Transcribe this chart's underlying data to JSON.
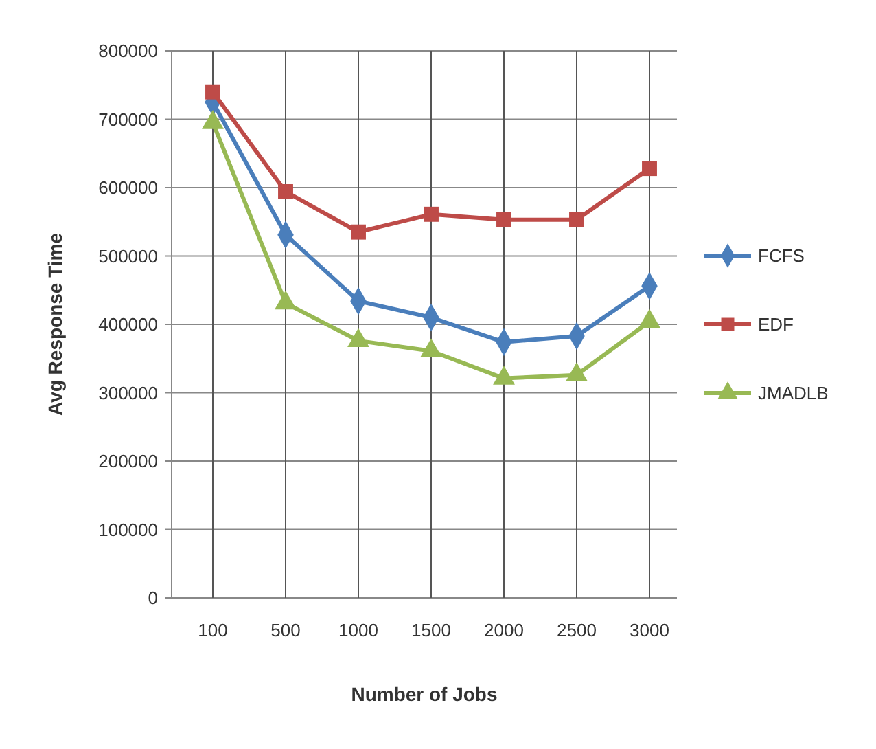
{
  "chart_data": {
    "type": "line",
    "xlabel": "Number of Jobs",
    "ylabel": "Avg Response Time",
    "categories": [
      "100",
      "500",
      "1000",
      "1500",
      "2000",
      "2500",
      "3000"
    ],
    "series": [
      {
        "name": "FCFS",
        "color": "#4a7ebb",
        "marker": "diamond",
        "values": [
          725000,
          531000,
          434000,
          410000,
          374000,
          383000,
          456000
        ]
      },
      {
        "name": "EDF",
        "color": "#be4b48",
        "marker": "square",
        "values": [
          740000,
          594000,
          535000,
          561000,
          553000,
          553000,
          628000
        ]
      },
      {
        "name": "JMADLB",
        "color": "#98b954",
        "marker": "triangle",
        "values": [
          695000,
          431000,
          376000,
          361000,
          321000,
          326000,
          404000
        ]
      }
    ],
    "ylim": [
      0,
      800000
    ],
    "yticks": [
      0,
      100000,
      200000,
      300000,
      400000,
      500000,
      600000,
      700000,
      800000
    ],
    "grid": true,
    "legend": "right"
  }
}
